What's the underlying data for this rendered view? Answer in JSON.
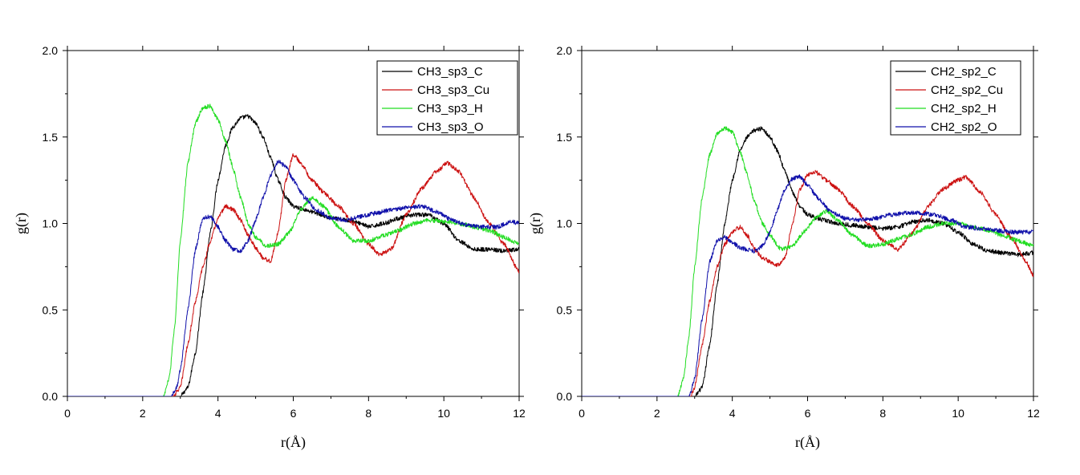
{
  "colors": {
    "C": "#000000",
    "Cu": "#cc1111",
    "H": "#22dd22",
    "O": "#1010aa"
  },
  "chart_data": [
    {
      "type": "line",
      "title": "",
      "xlabel": "r(Å)",
      "ylabel": "g(r)",
      "xlim": [
        0,
        12
      ],
      "ylim": [
        0,
        2.0
      ],
      "xticks": [
        "0",
        "2",
        "4",
        "6",
        "8",
        "10",
        "12"
      ],
      "yticks": [
        "0.0",
        "0.5",
        "1.0",
        "1.5",
        "2.0"
      ],
      "legend_position": "top-right",
      "series": [
        {
          "name": "CH3_sp3_C",
          "color_key": "C",
          "x": [
            0,
            3.0,
            3.2,
            3.4,
            3.6,
            3.8,
            4.0,
            4.2,
            4.4,
            4.6,
            4.8,
            5.0,
            5.2,
            5.4,
            5.6,
            5.8,
            6.0,
            6.3,
            6.6,
            7.0,
            7.4,
            7.8,
            8.0,
            8.4,
            8.8,
            9.2,
            9.6,
            10.0,
            10.4,
            10.8,
            11.2,
            11.6,
            12.0
          ],
          "y": [
            0,
            0.0,
            0.05,
            0.25,
            0.6,
            0.95,
            1.25,
            1.45,
            1.56,
            1.61,
            1.62,
            1.58,
            1.5,
            1.38,
            1.25,
            1.15,
            1.1,
            1.08,
            1.06,
            1.03,
            1.02,
            1.0,
            0.98,
            1.0,
            1.03,
            1.05,
            1.05,
            1.0,
            0.9,
            0.85,
            0.85,
            0.84,
            0.85
          ]
        },
        {
          "name": "CH3_sp3_Cu",
          "color_key": "Cu",
          "x": [
            0,
            2.8,
            3.0,
            3.2,
            3.4,
            3.6,
            3.8,
            4.0,
            4.2,
            4.4,
            4.6,
            4.8,
            5.0,
            5.2,
            5.4,
            5.6,
            5.8,
            6.0,
            6.2,
            6.5,
            6.8,
            7.2,
            7.6,
            8.0,
            8.3,
            8.6,
            9.0,
            9.4,
            9.8,
            10.1,
            10.4,
            10.8,
            11.2,
            11.6,
            12.0
          ],
          "y": [
            0,
            0.0,
            0.05,
            0.3,
            0.55,
            0.75,
            0.9,
            1.03,
            1.1,
            1.08,
            1.02,
            0.93,
            0.86,
            0.8,
            0.78,
            0.95,
            1.25,
            1.4,
            1.35,
            1.25,
            1.18,
            1.1,
            1.0,
            0.88,
            0.82,
            0.85,
            1.05,
            1.2,
            1.3,
            1.35,
            1.3,
            1.15,
            1.0,
            0.88,
            0.72
          ]
        },
        {
          "name": "CH3_sp3_H",
          "color_key": "H",
          "x": [
            0,
            2.55,
            2.7,
            2.85,
            3.0,
            3.2,
            3.4,
            3.6,
            3.8,
            4.0,
            4.2,
            4.4,
            4.6,
            4.8,
            5.0,
            5.3,
            5.6,
            5.9,
            6.2,
            6.5,
            6.8,
            7.2,
            7.6,
            8.0,
            8.4,
            8.8,
            9.2,
            9.6,
            10.0,
            10.4,
            10.8,
            11.2,
            11.6,
            12.0
          ],
          "y": [
            0,
            0.0,
            0.1,
            0.4,
            0.9,
            1.35,
            1.58,
            1.67,
            1.68,
            1.6,
            1.48,
            1.32,
            1.15,
            1.0,
            0.92,
            0.87,
            0.88,
            0.95,
            1.08,
            1.15,
            1.1,
            0.98,
            0.9,
            0.9,
            0.93,
            0.96,
            1.0,
            1.02,
            1.01,
            1.0,
            0.98,
            0.96,
            0.92,
            0.88
          ]
        },
        {
          "name": "CH3_sp3_O",
          "color_key": "O",
          "x": [
            0,
            2.75,
            2.9,
            3.0,
            3.2,
            3.4,
            3.6,
            3.8,
            4.0,
            4.2,
            4.4,
            4.6,
            4.8,
            5.0,
            5.2,
            5.4,
            5.6,
            5.8,
            6.0,
            6.3,
            6.6,
            7.0,
            7.4,
            7.8,
            8.2,
            8.6,
            9.0,
            9.4,
            9.8,
            10.2,
            10.6,
            11.0,
            11.4,
            11.8,
            12.0
          ],
          "y": [
            0,
            0.0,
            0.05,
            0.15,
            0.5,
            0.85,
            1.03,
            1.04,
            0.98,
            0.9,
            0.85,
            0.84,
            0.9,
            1.02,
            1.15,
            1.28,
            1.36,
            1.33,
            1.25,
            1.15,
            1.08,
            1.03,
            1.02,
            1.04,
            1.06,
            1.08,
            1.09,
            1.1,
            1.07,
            1.02,
            0.99,
            0.98,
            0.98,
            1.01,
            1.0
          ]
        }
      ]
    },
    {
      "type": "line",
      "title": "",
      "xlabel": "r(Å)",
      "ylabel": "g(r)",
      "xlim": [
        0,
        12
      ],
      "ylim": [
        0,
        2.0
      ],
      "xticks": [
        "0",
        "2",
        "4",
        "6",
        "8",
        "10",
        "12"
      ],
      "yticks": [
        "0.0",
        "0.5",
        "1.0",
        "1.5",
        "2.0"
      ],
      "legend_position": "top-right",
      "series": [
        {
          "name": "CH2_sp2_C",
          "color_key": "C",
          "x": [
            0,
            3.0,
            3.2,
            3.4,
            3.6,
            3.8,
            4.0,
            4.2,
            4.4,
            4.6,
            4.8,
            5.0,
            5.2,
            5.4,
            5.6,
            5.8,
            6.0,
            6.4,
            6.8,
            7.2,
            7.6,
            8.0,
            8.4,
            8.8,
            9.2,
            9.6,
            10.0,
            10.4,
            10.8,
            11.2,
            11.6,
            12.0
          ],
          "y": [
            0,
            0.0,
            0.05,
            0.3,
            0.65,
            1.0,
            1.25,
            1.42,
            1.5,
            1.54,
            1.55,
            1.5,
            1.42,
            1.3,
            1.18,
            1.1,
            1.05,
            1.02,
            1.0,
            0.99,
            0.98,
            0.97,
            0.98,
            1.01,
            1.02,
            1.0,
            0.95,
            0.88,
            0.84,
            0.83,
            0.82,
            0.83
          ]
        },
        {
          "name": "CH2_sp2_Cu",
          "color_key": "Cu",
          "x": [
            0,
            2.9,
            3.0,
            3.2,
            3.4,
            3.6,
            3.8,
            4.0,
            4.2,
            4.4,
            4.6,
            4.8,
            5.0,
            5.2,
            5.4,
            5.6,
            5.8,
            6.0,
            6.2,
            6.5,
            6.8,
            7.2,
            7.6,
            8.0,
            8.4,
            8.8,
            9.2,
            9.6,
            10.0,
            10.2,
            10.6,
            11.0,
            11.4,
            11.8,
            12.0
          ],
          "y": [
            0,
            0.0,
            0.05,
            0.3,
            0.55,
            0.75,
            0.88,
            0.95,
            0.98,
            0.93,
            0.85,
            0.8,
            0.78,
            0.76,
            0.8,
            1.0,
            1.2,
            1.28,
            1.3,
            1.25,
            1.2,
            1.1,
            1.0,
            0.9,
            0.85,
            0.95,
            1.1,
            1.2,
            1.25,
            1.27,
            1.18,
            1.05,
            0.92,
            0.78,
            0.7
          ]
        },
        {
          "name": "CH2_sp2_H",
          "color_key": "H",
          "x": [
            0,
            2.55,
            2.7,
            2.85,
            3.0,
            3.2,
            3.4,
            3.6,
            3.8,
            4.0,
            4.2,
            4.4,
            4.6,
            4.8,
            5.0,
            5.3,
            5.6,
            5.9,
            6.2,
            6.5,
            6.8,
            7.2,
            7.6,
            8.0,
            8.4,
            8.8,
            9.2,
            9.6,
            10.0,
            10.4,
            10.8,
            11.2,
            11.6,
            12.0
          ],
          "y": [
            0,
            0.0,
            0.1,
            0.35,
            0.75,
            1.15,
            1.4,
            1.52,
            1.55,
            1.53,
            1.42,
            1.28,
            1.12,
            1.0,
            0.93,
            0.85,
            0.87,
            0.95,
            1.03,
            1.07,
            1.02,
            0.93,
            0.87,
            0.88,
            0.91,
            0.94,
            0.98,
            1.0,
            1.0,
            0.98,
            0.96,
            0.93,
            0.9,
            0.87
          ]
        },
        {
          "name": "CH2_sp2_O",
          "color_key": "O",
          "x": [
            0,
            2.85,
            3.0,
            3.2,
            3.4,
            3.6,
            3.8,
            4.0,
            4.2,
            4.4,
            4.6,
            4.8,
            5.0,
            5.2,
            5.4,
            5.6,
            5.8,
            6.0,
            6.3,
            6.6,
            7.0,
            7.4,
            7.8,
            8.2,
            8.6,
            9.0,
            9.4,
            9.8,
            10.2,
            10.6,
            11.0,
            11.4,
            11.8,
            12.0
          ],
          "y": [
            0,
            0.0,
            0.1,
            0.45,
            0.78,
            0.9,
            0.92,
            0.89,
            0.86,
            0.85,
            0.84,
            0.87,
            0.95,
            1.08,
            1.2,
            1.26,
            1.27,
            1.22,
            1.14,
            1.07,
            1.03,
            1.02,
            1.03,
            1.05,
            1.06,
            1.06,
            1.05,
            1.02,
            0.98,
            0.97,
            0.96,
            0.95,
            0.95,
            0.95
          ]
        }
      ]
    }
  ]
}
